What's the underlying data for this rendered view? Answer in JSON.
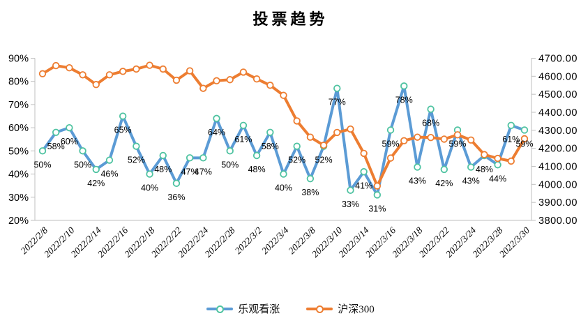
{
  "title": "投票趋势",
  "chart_data": {
    "type": "line",
    "title": "投票趋势",
    "grid": false,
    "legend_position": "bottom",
    "x_label_interval": 2,
    "x": [
      "2022/2/8",
      "2022/2/9",
      "2022/2/10",
      "2022/2/11",
      "2022/2/14",
      "2022/2/15",
      "2022/2/16",
      "2022/2/17",
      "2022/2/18",
      "2022/2/21",
      "2022/2/22",
      "2022/2/23",
      "2022/2/24",
      "2022/2/25",
      "2022/2/28",
      "2022/3/1",
      "2022/3/2",
      "2022/3/3",
      "2022/3/4",
      "2022/3/7",
      "2022/3/8",
      "2022/3/9",
      "2022/3/10",
      "2022/3/11",
      "2022/3/14",
      "2022/3/15",
      "2022/3/16",
      "2022/3/17",
      "2022/3/18",
      "2022/3/21",
      "2022/3/22",
      "2022/3/23",
      "2022/3/24",
      "2022/3/25",
      "2022/3/28",
      "2022/3/29",
      "2022/3/30"
    ],
    "x_shown_tick_labels": [
      "2022/2/8",
      "2022/2/10",
      "2022/2/14",
      "2022/2/16",
      "2022/2/18",
      "2022/2/22",
      "2022/2/24",
      "2022/2/28",
      "2022/3/2",
      "2022/3/4",
      "2022/3/8",
      "2022/3/10",
      "2022/3/14",
      "2022/3/16",
      "2022/3/18",
      "2022/3/22",
      "2022/3/24",
      "2022/3/28",
      "2022/3/30"
    ],
    "series": [
      {
        "name": "乐观看涨",
        "axis": "left",
        "unit": "%",
        "color": "#5B9BD5",
        "marker_stroke": "#4FC3A1",
        "show_data_labels": true,
        "values": [
          50,
          58,
          60,
          50,
          42,
          46,
          65,
          52,
          40,
          48,
          36,
          47,
          47,
          64,
          50,
          61,
          48,
          58,
          40,
          52,
          38,
          52,
          77,
          33,
          41,
          31,
          59,
          78,
          43,
          68,
          42,
          59,
          43,
          48,
          44,
          61,
          59
        ]
      },
      {
        "name": "沪深300",
        "axis": "right",
        "unit": "",
        "color": "#ED7D31",
        "marker_stroke": "#ED7D31",
        "show_data_labels": false,
        "values": [
          4614,
          4659,
          4647,
          4608,
          4554,
          4608,
          4627,
          4640,
          4661,
          4640,
          4578,
          4630,
          4533,
          4575,
          4581,
          4623,
          4585,
          4550,
          4494,
          4352,
          4262,
          4217,
          4288,
          4307,
          4172,
          3991,
          4146,
          4242,
          4262,
          4260,
          4251,
          4275,
          4246,
          4165,
          4144,
          4129,
          4253
        ]
      }
    ],
    "left_axis": {
      "min": 20,
      "max": 90,
      "step": 10,
      "tick_values": [
        90,
        80,
        70,
        60,
        50,
        40,
        30,
        20
      ],
      "tick_labels": [
        "90%",
        "80%",
        "70%",
        "60%",
        "50%",
        "40%",
        "30%",
        "20%"
      ]
    },
    "right_axis": {
      "min": 3800,
      "max": 4700,
      "step": 100,
      "tick_values": [
        4700,
        4600,
        4500,
        4400,
        4300,
        4200,
        4100,
        4000,
        3900,
        3800
      ],
      "tick_labels": [
        "4700.00",
        "4600.00",
        "4500.00",
        "4400.00",
        "4300.00",
        "4200.00",
        "4100.00",
        "4000.00",
        "3900.00",
        "3800.00"
      ]
    }
  },
  "legend": {
    "items": [
      {
        "label": "乐观看涨",
        "color": "#5B9BD5",
        "marker_stroke": "#4FC3A1"
      },
      {
        "label": "沪深300",
        "color": "#ED7D31",
        "marker_stroke": "#ED7D31"
      }
    ]
  },
  "colors": {
    "axis_line": "#BFBFBF",
    "text": "#000000",
    "background": "#FFFFFF"
  }
}
